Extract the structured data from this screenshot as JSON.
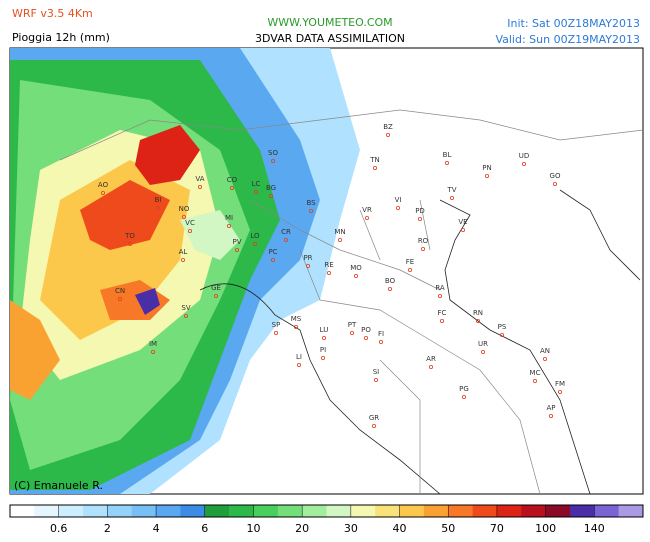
{
  "header": {
    "model": "WRF v3.5 4Km",
    "variable": "Pioggia 12h (mm)",
    "site": "WWW.YOUMETEO.COM",
    "subtitle": "3DVAR DATA ASSIMILATION",
    "init": "Init: Sat 00Z18MAY2013",
    "valid": "Valid: Sun 00Z19MAY2013"
  },
  "map": {
    "credit": "(C) Emanuele R.",
    "cities": [
      "BZ",
      "TN",
      "BL",
      "PN",
      "UD",
      "GO",
      "TV",
      "VI",
      "PD",
      "VE",
      "VR",
      "BS",
      "BG",
      "SO",
      "LC",
      "CO",
      "VA",
      "AO",
      "BI",
      "NO",
      "MI",
      "VC",
      "TO",
      "AL",
      "PV",
      "LO",
      "CR",
      "PC",
      "MN",
      "RO",
      "FE",
      "PR",
      "RE",
      "MO",
      "BO",
      "RA",
      "FC",
      "RN",
      "PS",
      "CN",
      "GE",
      "SV",
      "IM",
      "SP",
      "MS",
      "LU",
      "PT",
      "PO",
      "FI",
      "PI",
      "LI",
      "AR",
      "UR",
      "AN",
      "MC",
      "FM",
      "AP",
      "PG",
      "SI",
      "GR"
    ]
  },
  "colorbar": {
    "colors": [
      "#ffffff",
      "#e6f6ff",
      "#cceeff",
      "#b0e2ff",
      "#94d2fa",
      "#78bff5",
      "#5aa8f0",
      "#3c8ce6",
      "#1f9e3c",
      "#2db84a",
      "#48cf5c",
      "#74de7a",
      "#a4ec9e",
      "#d2f6c4",
      "#f4f8b0",
      "#fae27a",
      "#fbc84c",
      "#f9a232",
      "#f77826",
      "#ef4a1c",
      "#dd2216",
      "#b8101c",
      "#8a0a28",
      "#4a2ea8",
      "#7a64d4",
      "#aa9ae6"
    ],
    "labels": [
      0.6,
      2,
      4,
      6,
      10,
      20,
      30,
      40,
      50,
      70,
      100,
      140
    ]
  }
}
